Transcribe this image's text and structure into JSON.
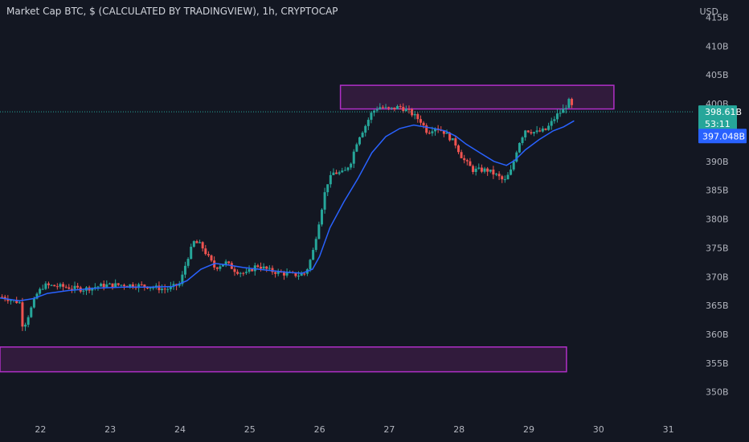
{
  "title": "Market Cap BTC, $ (CALCULATED BY TRADINGVIEW), 1h, CRYPTOCAP",
  "currency": "USD",
  "price_label": "398.61B",
  "countdown_label": "53:11",
  "ma_label": "397.048B",
  "colors": {
    "background": "#131722",
    "up": "#26a69a",
    "down": "#ef5350",
    "ma": "#2962ff",
    "zone_stroke": "#b02fc7",
    "zone_fill": "#4a1f52",
    "price_line": "#26a69a",
    "text": "#b2b5be"
  },
  "chart_data": {
    "type": "candlestick",
    "title": "Market Cap BTC, $ (CALCULATED BY TRADINGVIEW), 1h, CRYPTOCAP",
    "y_unit": "B USD",
    "ylim": [
      345.5,
      418
    ],
    "xlim": [
      21.42,
      31.35
    ],
    "y_ticks": [
      "415B",
      "410B",
      "405B",
      "400B",
      "395B",
      "390B",
      "385B",
      "380B",
      "375B",
      "370B",
      "365B",
      "360B",
      "355B",
      "350B"
    ],
    "y_tick_values": [
      415,
      410,
      405,
      400,
      395,
      390,
      385,
      380,
      375,
      370,
      365,
      360,
      355,
      350
    ],
    "x_ticks": [
      "22",
      "23",
      "24",
      "25",
      "26",
      "27",
      "28",
      "29",
      "30",
      "31"
    ],
    "x_tick_values": [
      22,
      23,
      24,
      25,
      26,
      27,
      28,
      29,
      30,
      31
    ],
    "last_price": 398.61,
    "ma_value": 397.048,
    "zones": [
      {
        "x0": 26.3,
        "x1": 30.22,
        "y0": 403.2,
        "y1": 399.1
      },
      {
        "x0": 21.42,
        "x1": 29.54,
        "y0": 357.8,
        "y1": 353.5
      }
    ],
    "price_series": [
      [
        21.45,
        366.5
      ],
      [
        21.7,
        365.5
      ],
      [
        21.75,
        361
      ],
      [
        21.85,
        364
      ],
      [
        21.95,
        367
      ],
      [
        22.05,
        368.5
      ],
      [
        22.3,
        368.3
      ],
      [
        22.6,
        367.8
      ],
      [
        22.9,
        368.5
      ],
      [
        23.2,
        368.6
      ],
      [
        23.5,
        368.4
      ],
      [
        23.8,
        367.8
      ],
      [
        24.0,
        368.7
      ],
      [
        24.1,
        373
      ],
      [
        24.2,
        376
      ],
      [
        24.3,
        375.5
      ],
      [
        24.4,
        373.5
      ],
      [
        24.5,
        371.5
      ],
      [
        24.65,
        372.5
      ],
      [
        24.8,
        371
      ],
      [
        24.95,
        370.5
      ],
      [
        25.1,
        372
      ],
      [
        25.3,
        371
      ],
      [
        25.5,
        370.5
      ],
      [
        25.7,
        370.3
      ],
      [
        25.8,
        370.6
      ],
      [
        25.9,
        374
      ],
      [
        26.0,
        380
      ],
      [
        26.1,
        386
      ],
      [
        26.2,
        388
      ],
      [
        26.35,
        388
      ],
      [
        26.45,
        390
      ],
      [
        26.55,
        394
      ],
      [
        26.65,
        396
      ],
      [
        26.75,
        398.5
      ],
      [
        26.85,
        399.5
      ],
      [
        27.0,
        399
      ],
      [
        27.15,
        399.5
      ],
      [
        27.3,
        398.5
      ],
      [
        27.45,
        397
      ],
      [
        27.55,
        395
      ],
      [
        27.65,
        396
      ],
      [
        27.8,
        395
      ],
      [
        27.95,
        393
      ],
      [
        28.05,
        390.5
      ],
      [
        28.2,
        388.5
      ],
      [
        28.4,
        388.5
      ],
      [
        28.55,
        387.5
      ],
      [
        28.65,
        386.5
      ],
      [
        28.75,
        388.5
      ],
      [
        28.85,
        393
      ],
      [
        28.95,
        395.5
      ],
      [
        29.1,
        395
      ],
      [
        29.25,
        395.5
      ],
      [
        29.4,
        398
      ],
      [
        29.5,
        399
      ],
      [
        29.58,
        400.5
      ],
      [
        29.65,
        398.61
      ]
    ],
    "ma_series": [
      [
        21.42,
        366.3
      ],
      [
        21.7,
        365.8
      ],
      [
        21.9,
        366.2
      ],
      [
        22.1,
        367.1
      ],
      [
        22.4,
        367.6
      ],
      [
        22.8,
        368.0
      ],
      [
        23.2,
        368.2
      ],
      [
        23.6,
        368.2
      ],
      [
        23.9,
        368.3
      ],
      [
        24.1,
        369.3
      ],
      [
        24.3,
        371.3
      ],
      [
        24.5,
        372.3
      ],
      [
        24.7,
        372.0
      ],
      [
        24.9,
        371.6
      ],
      [
        25.2,
        371.2
      ],
      [
        25.5,
        370.8
      ],
      [
        25.75,
        370.6
      ],
      [
        25.9,
        371.3
      ],
      [
        26.0,
        373.5
      ],
      [
        26.15,
        378.5
      ],
      [
        26.35,
        383
      ],
      [
        26.55,
        387
      ],
      [
        26.75,
        391.5
      ],
      [
        26.95,
        394.3
      ],
      [
        27.15,
        395.7
      ],
      [
        27.35,
        396.3
      ],
      [
        27.6,
        395.8
      ],
      [
        27.8,
        395.3
      ],
      [
        27.95,
        394.4
      ],
      [
        28.1,
        393.0
      ],
      [
        28.3,
        391.5
      ],
      [
        28.5,
        390.0
      ],
      [
        28.68,
        389.3
      ],
      [
        28.8,
        390.2
      ],
      [
        28.95,
        392.0
      ],
      [
        29.15,
        393.8
      ],
      [
        29.35,
        395.3
      ],
      [
        29.5,
        396.0
      ],
      [
        29.65,
        397.048
      ]
    ]
  }
}
